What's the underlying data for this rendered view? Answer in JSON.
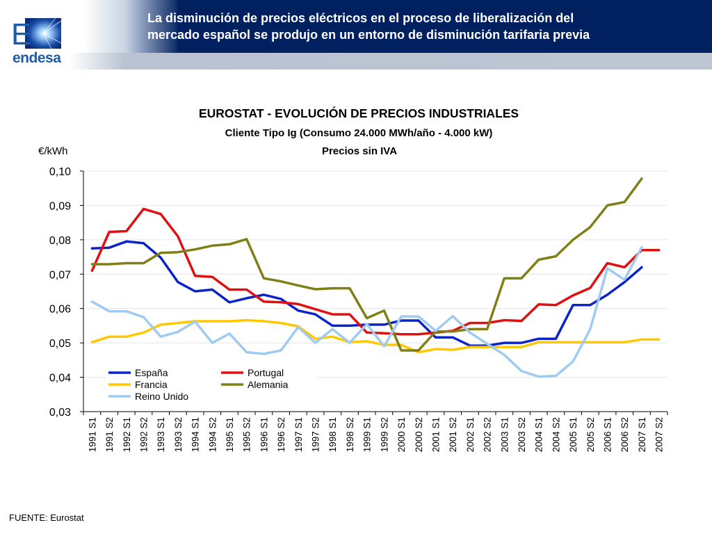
{
  "header": {
    "title_line1": "La disminución de precios eléctricos en el proceso de liberalización del",
    "title_line2": "mercado español se produjo en un entorno de disminución tarifaria previa",
    "logo_text": "endesa",
    "logo_letter": "E",
    "colors": {
      "band": "#002060",
      "logo": "#1f5cab"
    }
  },
  "footer": {
    "source": "FUENTE: Eurostat"
  },
  "chart_data": {
    "type": "line",
    "title": "EUROSTAT - EVOLUCIÓN DE PRECIOS INDUSTRIALES",
    "subtitle": "Cliente Tipo Ig (Consumo 24.000 MWh/año - 4.000 kW)",
    "subtitle2": "Precios sin IVA",
    "ylabel": "€/kWh",
    "xlabel": "",
    "ylim": [
      0.03,
      0.1
    ],
    "yticks": [
      "0,03",
      "0,04",
      "0,05",
      "0,06",
      "0,07",
      "0,08",
      "0,09",
      "0,10"
    ],
    "grid": true,
    "legend_position": "lower-left",
    "categories": [
      "1991 S1",
      "1991 S2",
      "1992 S1",
      "1992 S2",
      "1993 S1",
      "1993 S2",
      "1994 S1",
      "1994 S2",
      "1995 S1",
      "1995 S2",
      "1996 S1",
      "1996 S2",
      "1997 S1",
      "1997 S2",
      "1998 S1",
      "1998 S2",
      "1999 S1",
      "1999 S2",
      "2000 S1",
      "2000 S2",
      "2001 S1",
      "2001 S2",
      "2002 S1",
      "2002 S2",
      "2003 S1",
      "2003 S2",
      "2004 S1",
      "2004 S2",
      "2005 S1",
      "2005 S2",
      "2006 S1",
      "2006 S2",
      "2007 S1",
      "2007 S2"
    ],
    "series": [
      {
        "name": "España",
        "color": "#0a24c8",
        "values": [
          0.0775,
          0.0777,
          0.0795,
          0.079,
          0.0748,
          0.0677,
          0.065,
          0.0655,
          0.0618,
          0.063,
          0.064,
          0.0628,
          0.0594,
          0.0583,
          0.055,
          0.055,
          0.0553,
          0.0553,
          0.0565,
          0.0565,
          0.0516,
          0.0516,
          0.0492,
          0.0492,
          0.05,
          0.05,
          0.0512,
          0.0512,
          0.061,
          0.061,
          0.064,
          0.0677,
          0.072,
          null
        ]
      },
      {
        "name": "Portugal",
        "color": "#e01010",
        "values": [
          0.071,
          0.0823,
          0.0825,
          0.089,
          0.0875,
          0.081,
          0.0695,
          0.0692,
          0.0655,
          0.0655,
          0.062,
          0.0618,
          0.0613,
          0.0598,
          0.0583,
          0.0583,
          0.053,
          0.0528,
          0.0525,
          0.0525,
          0.053,
          0.0535,
          0.0558,
          0.0558,
          0.0566,
          0.0564,
          0.0612,
          0.061,
          0.0638,
          0.066,
          0.0732,
          0.072,
          0.077,
          0.077
        ]
      },
      {
        "name": "Francia",
        "color": "#ffc800",
        "values": [
          0.0502,
          0.0518,
          0.0518,
          0.053,
          0.0553,
          0.0558,
          0.0563,
          0.0563,
          0.0563,
          0.0566,
          0.0563,
          0.0558,
          0.0548,
          0.0512,
          0.0518,
          0.0502,
          0.0505,
          0.0494,
          0.0494,
          0.0473,
          0.0482,
          0.048,
          0.0488,
          0.0488,
          0.0488,
          0.0488,
          0.0502,
          0.0502,
          0.0502,
          0.0502,
          0.0502,
          0.0502,
          0.051,
          0.051
        ]
      },
      {
        "name": "Alemania",
        "color": "#7f7f15",
        "values": [
          0.0729,
          0.0729,
          0.0732,
          0.0732,
          0.0762,
          0.0764,
          0.0772,
          0.0783,
          0.0787,
          0.0802,
          0.0688,
          0.0679,
          0.0667,
          0.0656,
          0.0659,
          0.0659,
          0.0572,
          0.0594,
          0.0478,
          0.0478,
          0.0533,
          0.0533,
          0.054,
          0.054,
          0.0688,
          0.0688,
          0.0742,
          0.0752,
          0.08,
          0.0837,
          0.09,
          0.091,
          0.0978,
          null
        ]
      },
      {
        "name": "Reino Unido",
        "color": "#a0cbf0",
        "values": [
          0.062,
          0.0592,
          0.0592,
          0.0575,
          0.0518,
          0.0532,
          0.0562,
          0.05,
          0.0527,
          0.0473,
          0.0468,
          0.0478,
          0.0546,
          0.05,
          0.054,
          0.05,
          0.0555,
          0.049,
          0.0577,
          0.0577,
          0.0535,
          0.0578,
          0.053,
          0.0497,
          0.0465,
          0.0418,
          0.0402,
          0.0404,
          0.0446,
          0.054,
          0.0717,
          0.0684,
          0.0778,
          null
        ]
      }
    ]
  }
}
